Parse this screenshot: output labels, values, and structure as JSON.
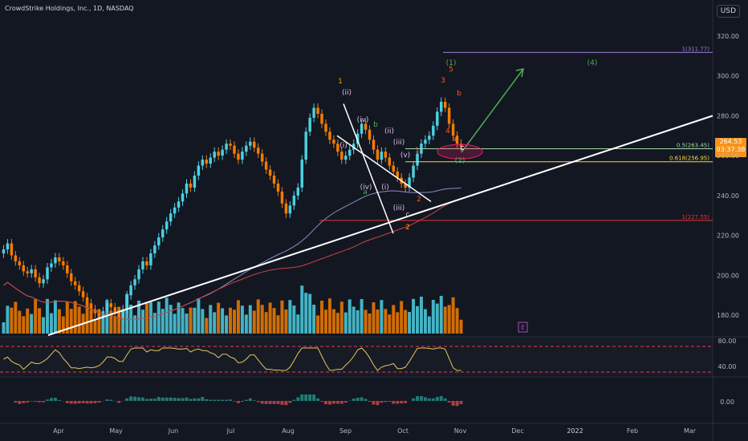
{
  "header": {
    "title": "CrowdStrike Holdings, Inc., 1D, NASDAQ"
  },
  "currency_button": "USD",
  "price_tag": {
    "price": "264.53",
    "countdown": "03:37:38",
    "color": "#f7931a"
  },
  "colors": {
    "background": "#131722",
    "up": "#4dd0e1",
    "down": "#f57c00",
    "trendline": "#ffffff",
    "ma_long": "#c94545",
    "ma_short": "#8c8cbe"
  },
  "chart_data": {
    "type": "candlestick",
    "symbol": "CrowdStrike Holdings, Inc.",
    "timeframe": "1D",
    "exchange": "NASDAQ",
    "x_labels": [
      "Apr",
      "May",
      "Jun",
      "Jul",
      "Aug",
      "Sep",
      "Oct",
      "Nov",
      "Dec",
      "2022",
      "Feb",
      "Mar"
    ],
    "ylim": [
      170,
      330
    ],
    "y_ticks": [
      180,
      200,
      220,
      240,
      260,
      280,
      300,
      320
    ],
    "last_price": 264.53,
    "fib_levels": [
      {
        "label": "1(311.77)",
        "value": 311.77,
        "color": "#9c7cd6"
      },
      {
        "label": "0.5(263.45)",
        "value": 263.45,
        "color": "#a5d6a7"
      },
      {
        "label": "0.618(256.95)",
        "value": 256.95,
        "color": "#fdd835"
      },
      {
        "label": "1(227.55)",
        "value": 227.55,
        "color": "#e53935"
      }
    ],
    "closes": [
      213,
      216,
      210,
      207,
      205,
      202,
      201,
      203,
      199,
      196,
      198,
      204,
      206,
      209,
      207,
      205,
      201,
      197,
      195,
      192,
      189,
      186,
      183,
      181,
      180,
      182,
      186,
      184,
      181,
      179,
      183,
      190,
      195,
      198,
      203,
      207,
      205,
      211,
      215,
      219,
      223,
      227,
      231,
      234,
      237,
      241,
      246,
      244,
      250,
      255,
      258,
      256,
      259,
      262,
      260,
      263,
      266,
      265,
      261,
      258,
      262,
      265,
      267,
      264,
      261,
      257,
      253,
      250,
      246,
      242,
      236,
      231,
      235,
      240,
      244,
      258,
      272,
      279,
      284,
      281,
      276,
      272,
      268,
      266,
      262,
      258,
      260,
      263,
      266,
      271,
      276,
      273,
      268,
      263,
      258,
      262,
      259,
      255,
      252,
      249,
      246,
      244,
      249,
      255,
      261,
      266,
      268,
      270,
      275,
      282,
      287,
      284,
      276,
      270,
      266,
      264.53
    ],
    "annotations": [
      "1",
      "(ii)",
      "(i)",
      "(iv)",
      "b",
      "(ii)",
      "(iii)",
      "(v)",
      "(iv)",
      "a",
      "(i)",
      "c",
      "(iii)",
      "2",
      "2",
      "1",
      "(1)",
      "5",
      "3",
      "b",
      "4",
      "a",
      "c",
      "(2)",
      "(4)"
    ],
    "event_badge": "E",
    "indicator1": {
      "levels": [
        80.0,
        40.0
      ]
    },
    "indicator2": {
      "levels": [
        0.0
      ]
    }
  }
}
